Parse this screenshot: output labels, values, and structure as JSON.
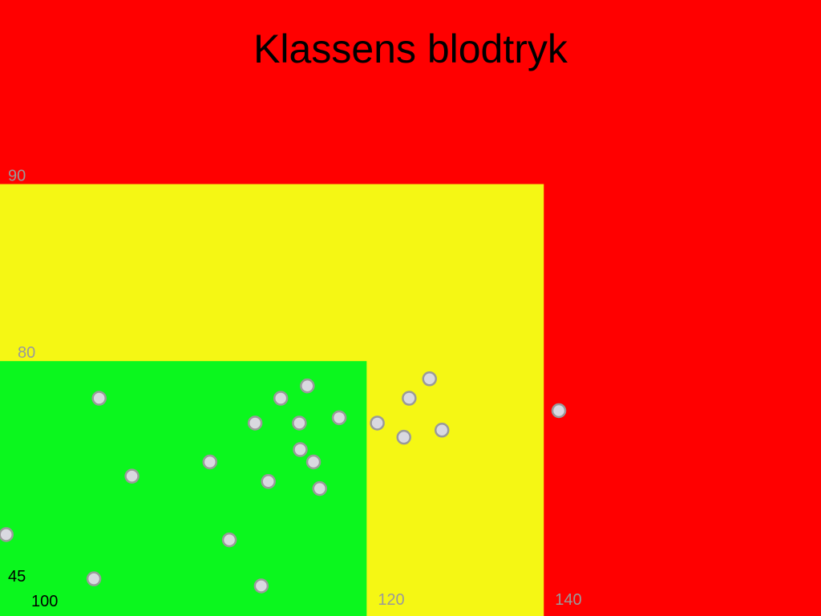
{
  "chart_data": {
    "type": "scatter",
    "title": "Klassens blodtryk",
    "xlim": [
      78.6,
      171.3
    ],
    "ylim": [
      65.6,
      100.4
    ],
    "xticks": [
      120,
      140
    ],
    "yticks": [
      80,
      90
    ],
    "x_origin_label": "100",
    "y_origin_label": "45",
    "background_color": "#ff0000",
    "zones": [
      {
        "x_max": 140,
        "y_max": 90,
        "color": "#f5f714"
      },
      {
        "x_max": 120,
        "y_max": 80,
        "color": "#0bf71e"
      }
    ],
    "marker_color": "#d9d9e0",
    "marker_edge_color": "#9a9a9a",
    "x": [
      89.8,
      93.5,
      79.3,
      89.2,
      102.3,
      104.5,
      107.4,
      108.1,
      108.9,
      110.3,
      112.4,
      113.3,
      112.5,
      114.0,
      114.7,
      116.9,
      121.2,
      124.2,
      124.8,
      127.1,
      128.5,
      141.7
    ],
    "values": [
      77.9,
      73.5,
      70.2,
      67.7,
      74.3,
      69.9,
      76.5,
      67.3,
      73.2,
      77.9,
      76.5,
      78.6,
      75.0,
      74.3,
      72.8,
      76.8,
      76.5,
      75.7,
      77.9,
      79.0,
      76.1,
      77.2
    ]
  }
}
